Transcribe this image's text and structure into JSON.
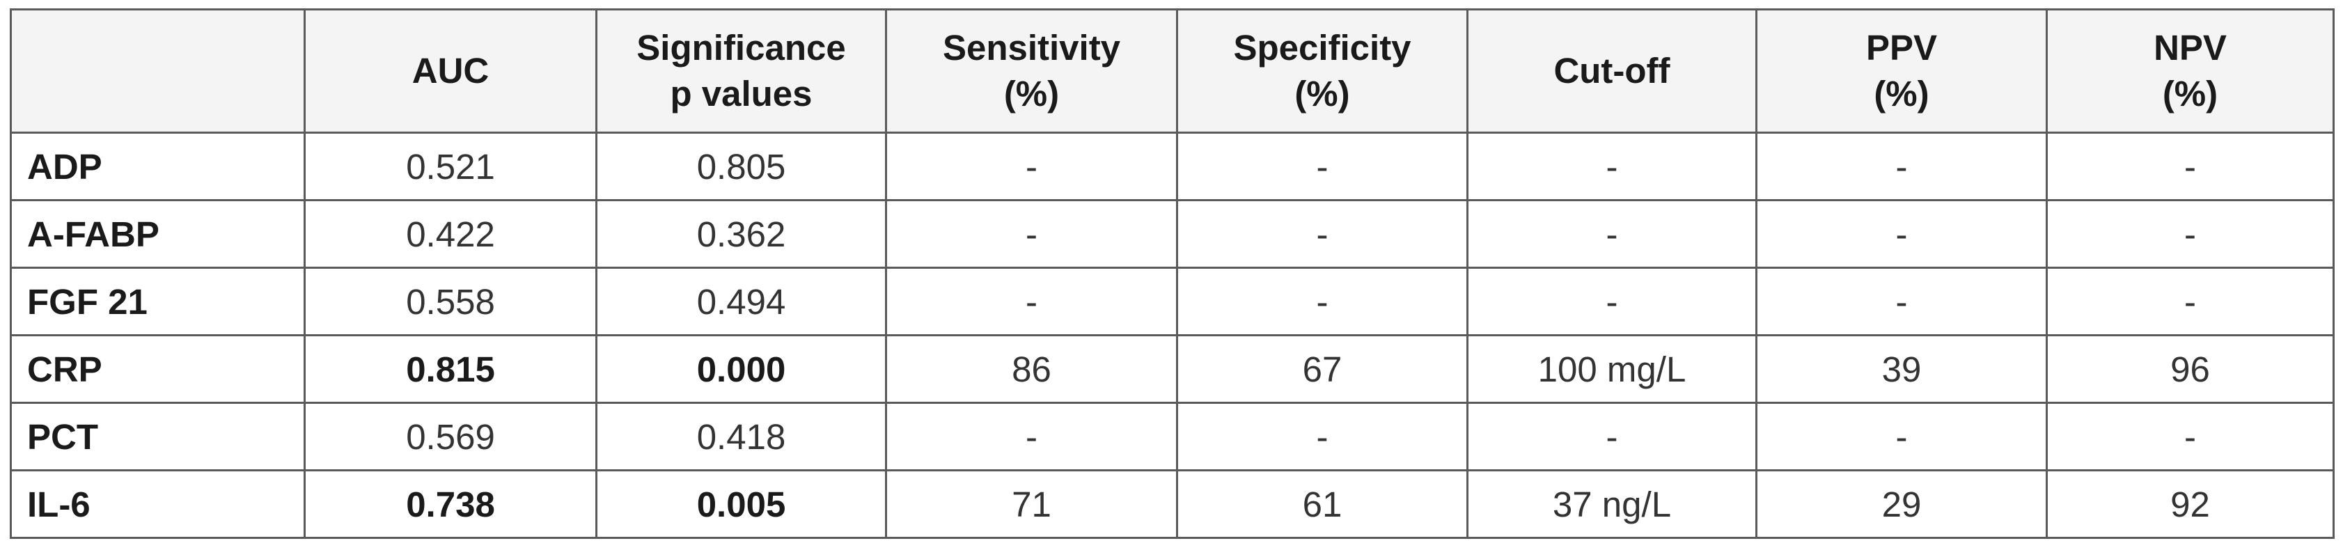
{
  "table": {
    "headers": [
      {
        "lines": [
          ""
        ]
      },
      {
        "lines": [
          "AUC"
        ]
      },
      {
        "lines": [
          "Significance",
          "p values"
        ]
      },
      {
        "lines": [
          "Sensitivity",
          "(%)"
        ]
      },
      {
        "lines": [
          "Specificity",
          "(%)"
        ]
      },
      {
        "lines": [
          "Cut-off"
        ]
      },
      {
        "lines": [
          "PPV",
          "(%)"
        ]
      },
      {
        "lines": [
          "NPV",
          "(%)"
        ]
      }
    ],
    "rows": [
      {
        "label": "ADP",
        "auc": "0.521",
        "p": "0.805",
        "sensitivity": "-",
        "specificity": "-",
        "cutoff": "-",
        "ppv": "-",
        "npv": "-",
        "significant": false
      },
      {
        "label": "A-FABP",
        "auc": "0.422",
        "p": "0.362",
        "sensitivity": "-",
        "specificity": "-",
        "cutoff": "-",
        "ppv": "-",
        "npv": "-",
        "significant": false
      },
      {
        "label": "FGF 21",
        "auc": "0.558",
        "p": "0.494",
        "sensitivity": "-",
        "specificity": "-",
        "cutoff": "-",
        "ppv": "-",
        "npv": "-",
        "significant": false
      },
      {
        "label": "CRP",
        "auc": "0.815",
        "p": "0.000",
        "sensitivity": "86",
        "specificity": "67",
        "cutoff": "100 mg/L",
        "ppv": "39",
        "npv": "96",
        "significant": true
      },
      {
        "label": "PCT",
        "auc": "0.569",
        "p": "0.418",
        "sensitivity": "-",
        "specificity": "-",
        "cutoff": "-",
        "ppv": "-",
        "npv": "-",
        "significant": false
      },
      {
        "label": "IL-6",
        "auc": "0.738",
        "p": "0.005",
        "sensitivity": "71",
        "specificity": "61",
        "cutoff": "37 ng/L",
        "ppv": "29",
        "npv": "92",
        "significant": true
      }
    ]
  }
}
